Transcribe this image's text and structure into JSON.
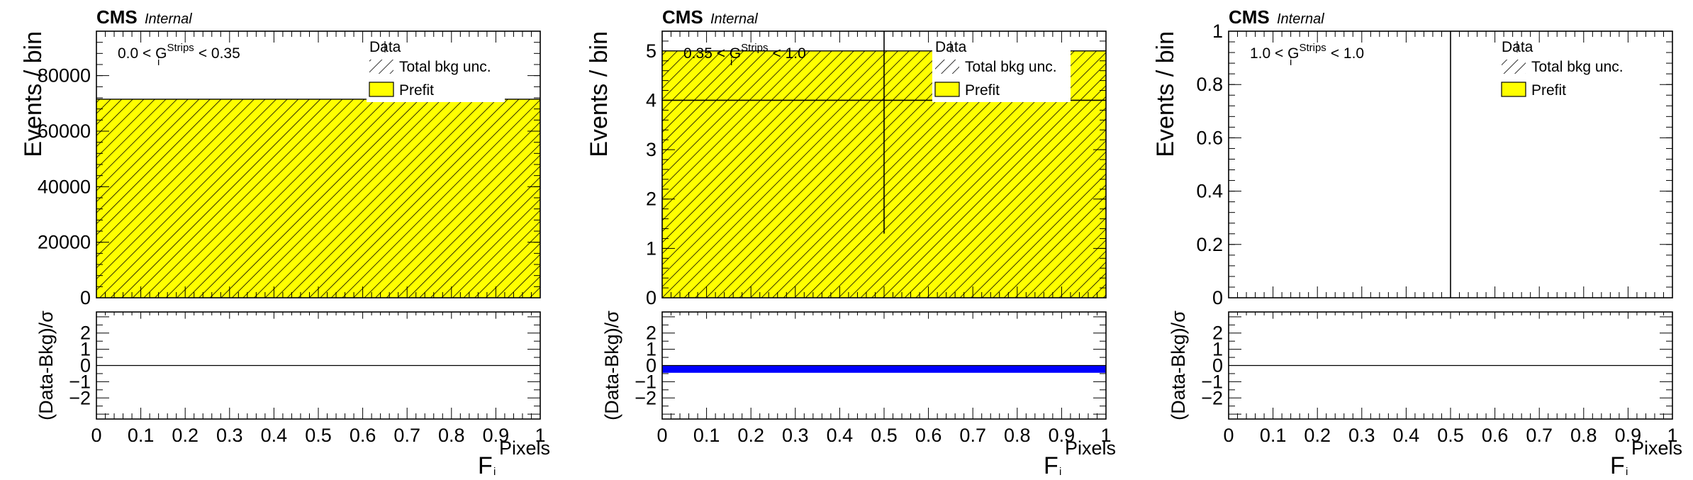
{
  "colors": {
    "prefit_fill": "#ffff00",
    "hatch": "#000000",
    "pull_band": "#0000ff",
    "frame": "#000000"
  },
  "chart_data": [
    {
      "type": "histogram",
      "header": {
        "cms": "CMS",
        "internal": "Internal"
      },
      "cut_label": {
        "pre": "0.0 < G",
        "sup": "Strips",
        "sub": "i",
        "post": "< 0.35"
      },
      "legend": {
        "data": "Data",
        "unc": "Total bkg unc.",
        "prefit": "Prefit"
      },
      "xlabel": {
        "main": "F",
        "sup": "Pixels",
        "sub": "i"
      },
      "ylabel": "Events / bin",
      "ratio_ylabel": "(Data-Bkg)/σ",
      "xlim": [
        0,
        1
      ],
      "ylim": [
        0,
        96000
      ],
      "xticks": [
        "0",
        "0.1",
        "0.2",
        "0.3",
        "0.4",
        "0.5",
        "0.6",
        "0.7",
        "0.8",
        "0.9",
        "1"
      ],
      "yticks": [
        {
          "v": 0,
          "label": "0"
        },
        {
          "v": 20000,
          "label": "20000"
        },
        {
          "v": 40000,
          "label": "40000"
        },
        {
          "v": 60000,
          "label": "60000"
        },
        {
          "v": 80000,
          "label": "80000"
        }
      ],
      "ratio_ylim": [
        -3.3,
        3.3
      ],
      "ratio_yticks": [
        {
          "v": 2,
          "label": "2"
        },
        {
          "v": 1,
          "label": "1"
        },
        {
          "v": 0,
          "label": "0"
        },
        {
          "v": -1,
          "label": "−1"
        },
        {
          "v": -2,
          "label": "−2"
        }
      ],
      "bins": [
        {
          "x0": 0,
          "x1": 1,
          "prefit": 71500
        }
      ],
      "data_points": [],
      "pull_band": null
    },
    {
      "type": "histogram",
      "header": {
        "cms": "CMS",
        "internal": "Internal"
      },
      "cut_label": {
        "pre": "0.35 < G",
        "sup": "Strips",
        "sub": "i",
        "post": "< 1.0"
      },
      "legend": {
        "data": "Data",
        "unc": "Total bkg unc.",
        "prefit": "Prefit"
      },
      "xlabel": {
        "main": "F",
        "sup": "Pixels",
        "sub": "i"
      },
      "ylabel": "Events / bin",
      "ratio_ylabel": "(Data-Bkg)/σ",
      "xlim": [
        0,
        1
      ],
      "ylim": [
        0,
        5.4
      ],
      "xticks": [
        "0",
        "0.1",
        "0.2",
        "0.3",
        "0.4",
        "0.5",
        "0.6",
        "0.7",
        "0.8",
        "0.9",
        "1"
      ],
      "yticks": [
        {
          "v": 0,
          "label": "0"
        },
        {
          "v": 1,
          "label": "1"
        },
        {
          "v": 2,
          "label": "2"
        },
        {
          "v": 3,
          "label": "3"
        },
        {
          "v": 4,
          "label": "4"
        },
        {
          "v": 5,
          "label": "5"
        }
      ],
      "ratio_ylim": [
        -3.3,
        3.3
      ],
      "ratio_yticks": [
        {
          "v": 2,
          "label": "2"
        },
        {
          "v": 1,
          "label": "1"
        },
        {
          "v": 0,
          "label": "0"
        },
        {
          "v": -1,
          "label": "−1"
        },
        {
          "v": -2,
          "label": "−2"
        }
      ],
      "bins": [
        {
          "x0": 0,
          "x1": 1,
          "prefit": 5
        }
      ],
      "data_points": [
        {
          "x": 0.5,
          "y": 4,
          "xerr": 0.5,
          "ylow": 1.3,
          "yhigh": 5.4
        }
      ],
      "pull_band": {
        "low": -0.45,
        "high": 0.0
      }
    },
    {
      "type": "histogram",
      "header": {
        "cms": "CMS",
        "internal": "Internal"
      },
      "cut_label": {
        "pre": "1.0 < G",
        "sup": "Strips",
        "sub": "i",
        "post": "< 1.0"
      },
      "legend": {
        "data": "Data",
        "unc": "Total bkg unc.",
        "prefit": "Prefit"
      },
      "xlabel": {
        "main": "F",
        "sup": "Pixels",
        "sub": "i"
      },
      "ylabel": "Events / bin",
      "ratio_ylabel": "(Data-Bkg)/σ",
      "xlim": [
        0,
        1
      ],
      "ylim": [
        0,
        1
      ],
      "xticks": [
        "0",
        "0.1",
        "0.2",
        "0.3",
        "0.4",
        "0.5",
        "0.6",
        "0.7",
        "0.8",
        "0.9",
        "1"
      ],
      "yticks": [
        {
          "v": 0,
          "label": "0"
        },
        {
          "v": 0.2,
          "label": "0.2"
        },
        {
          "v": 0.4,
          "label": "0.4"
        },
        {
          "v": 0.6,
          "label": "0.6"
        },
        {
          "v": 0.8,
          "label": "0.8"
        },
        {
          "v": 1,
          "label": "1"
        }
      ],
      "ratio_ylim": [
        -3.3,
        3.3
      ],
      "ratio_yticks": [
        {
          "v": 2,
          "label": "2"
        },
        {
          "v": 1,
          "label": "1"
        },
        {
          "v": 0,
          "label": "0"
        },
        {
          "v": -1,
          "label": "−1"
        },
        {
          "v": -2,
          "label": "−2"
        }
      ],
      "bins": [],
      "data_points": [
        {
          "x": 0.5,
          "y": 0,
          "xerr": 0,
          "ylow": 0,
          "yhigh": 1
        }
      ],
      "pull_band": null
    }
  ]
}
